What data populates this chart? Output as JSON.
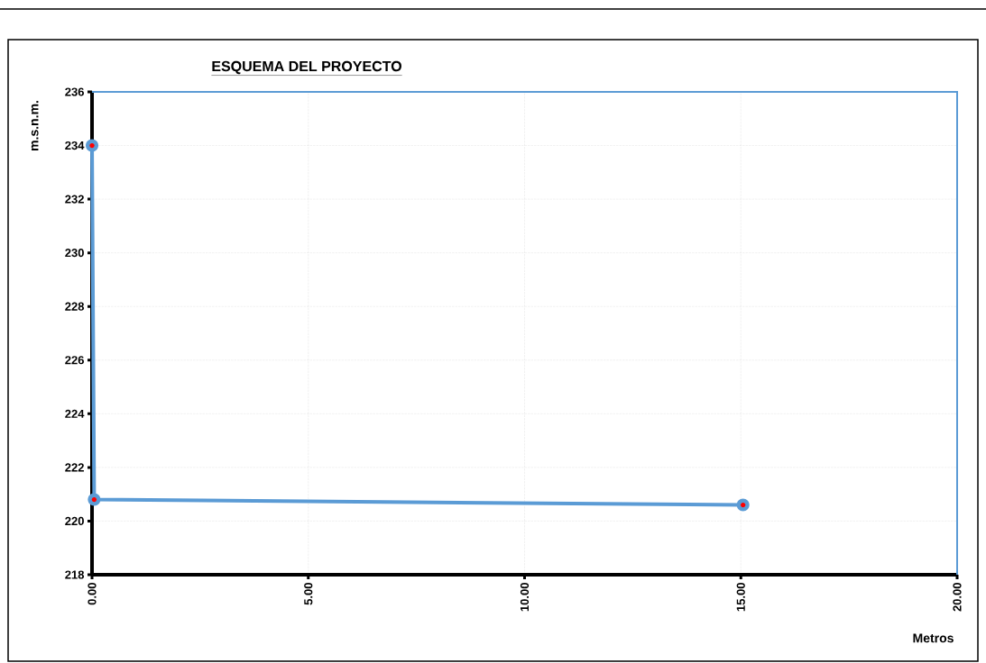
{
  "chart_data": {
    "type": "line",
    "title": "ESQUEMA DEL PROYECTO",
    "xlabel": "Metros",
    "ylabel": "m.s.n.m.",
    "series": [
      {
        "color": "#5b9bd5",
        "x": [
          0,
          0.05,
          15.05
        ],
        "values": [
          234,
          220.8,
          220.6
        ]
      }
    ],
    "xlim": [
      0,
      20
    ],
    "ylim": [
      218,
      236
    ],
    "xticks": [
      {
        "value": 0,
        "label": "0.00"
      },
      {
        "value": 5,
        "label": "5.00"
      },
      {
        "value": 10,
        "label": "10.00"
      },
      {
        "value": 15,
        "label": "15.00"
      },
      {
        "value": 20,
        "label": "20.00"
      }
    ],
    "yticks": [
      218,
      220,
      222,
      224,
      226,
      228,
      230,
      232,
      234,
      236
    ],
    "grid": true,
    "marker": "circle",
    "line_style": "solid"
  }
}
